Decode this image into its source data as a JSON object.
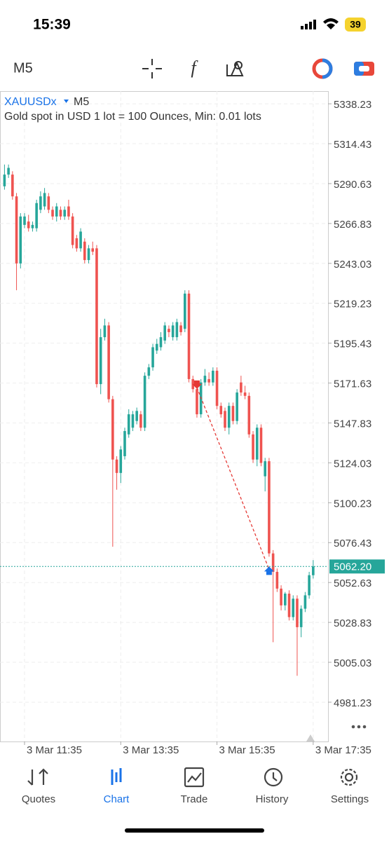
{
  "status_bar": {
    "time": "15:39",
    "battery": "39"
  },
  "toolbar": {
    "timeframe": "M5"
  },
  "chart_data": {
    "type": "candlestick",
    "symbol": "XAUUSDx",
    "timeframe": "M5",
    "description": "Gold spot in USD 1 lot = 100 Ounces, Min: 0.01 lots",
    "categories": [
      null,
      null,
      null,
      null,
      null,
      "3 Mar 11:35",
      null,
      null,
      null,
      null,
      null,
      null,
      null,
      null,
      null,
      null,
      null,
      null,
      null,
      null,
      null,
      null,
      null,
      null,
      null,
      null,
      null,
      null,
      null,
      "3 Mar 13:35",
      null,
      null,
      null,
      null,
      null,
      null,
      null,
      null,
      null,
      null,
      null,
      null,
      null,
      null,
      null,
      null,
      null,
      null,
      null,
      null,
      null,
      null,
      null,
      "3 Mar 15:35",
      null,
      null,
      null,
      null,
      null,
      null,
      null,
      null,
      null,
      null,
      null,
      null,
      null,
      null,
      null,
      null,
      null,
      null,
      null,
      null,
      null,
      null,
      null,
      "3 Mar 17:35"
    ],
    "open": [
      5289,
      5296,
      5296,
      5283,
      5243,
      5266,
      5268,
      5264,
      5264,
      5275,
      5277,
      5283,
      5275,
      5271,
      5275,
      5271,
      5277,
      5271,
      5258,
      5252,
      5256,
      5245,
      5252,
      5252,
      5171,
      5199,
      5206,
      5162,
      5126,
      5118,
      5128,
      5141,
      5145,
      5149,
      5153,
      5145,
      5176,
      5181,
      5191,
      5193,
      5197,
      5204,
      5199,
      5199,
      5206,
      5204,
      5225,
      5174,
      5168,
      5153,
      5172,
      5174,
      5172,
      5179,
      5158,
      5155,
      5145,
      5158,
      5149,
      5172,
      5166,
      5164,
      5141,
      5126,
      5145,
      5116,
      5125,
      5070,
      5059,
      5049,
      5039,
      5046,
      5032,
      5043,
      5026,
      5037,
      5045,
      5057
    ],
    "high": [
      5302,
      5302,
      5298,
      5285,
      5273,
      5273,
      5272,
      5268,
      5281,
      5286,
      5288,
      5285,
      5277,
      5279,
      5277,
      5277,
      5281,
      5273,
      5260,
      5264,
      5258,
      5254,
      5256,
      5254,
      5204,
      5210,
      5208,
      5164,
      5128,
      5134,
      5145,
      5156,
      5155,
      5157,
      5155,
      5178,
      5183,
      5195,
      5198,
      5202,
      5208,
      5206,
      5208,
      5210,
      5208,
      5227,
      5227,
      5176,
      5172,
      5174,
      5180,
      5178,
      5181,
      5181,
      5160,
      5157,
      5160,
      5160,
      5168,
      5176,
      5170,
      5166,
      5143,
      5147,
      5147,
      5127,
      5127,
      5072,
      5061,
      5051,
      5047,
      5048,
      5045,
      5045,
      5039,
      5047,
      5059,
      5066
    ],
    "low": [
      5287,
      5294,
      5281,
      5227,
      5240,
      5264,
      5262,
      5262,
      5262,
      5273,
      5275,
      5273,
      5269,
      5268,
      5269,
      5269,
      5269,
      5252,
      5250,
      5250,
      5243,
      5243,
      5248,
      5169,
      5165,
      5197,
      5160,
      5074,
      5108,
      5112,
      5126,
      5139,
      5143,
      5147,
      5143,
      5143,
      5174,
      5179,
      5189,
      5191,
      5195,
      5199,
      5197,
      5197,
      5200,
      5202,
      5172,
      5166,
      5151,
      5151,
      5170,
      5170,
      5170,
      5156,
      5151,
      5143,
      5141,
      5147,
      5147,
      5164,
      5162,
      5139,
      5124,
      5122,
      5122,
      5107,
      5068,
      5017,
      5047,
      5036,
      5036,
      5030,
      5030,
      4997,
      5020,
      5035,
      5043,
      5055
    ],
    "close": [
      5296,
      5300,
      5283,
      5243,
      5271,
      5271,
      5264,
      5266,
      5279,
      5283,
      5285,
      5275,
      5271,
      5277,
      5271,
      5275,
      5271,
      5254,
      5252,
      5262,
      5245,
      5252,
      5250,
      5171,
      5199,
      5206,
      5162,
      5126,
      5118,
      5132,
      5143,
      5153,
      5153,
      5155,
      5145,
      5176,
      5181,
      5193,
      5195,
      5199,
      5206,
      5202,
      5206,
      5208,
      5202,
      5225,
      5174,
      5168,
      5153,
      5172,
      5176,
      5172,
      5179,
      5158,
      5153,
      5145,
      5158,
      5149,
      5166,
      5166,
      5164,
      5141,
      5126,
      5145,
      5124,
      5125,
      5070,
      5059,
      5049,
      5039,
      5046,
      5032,
      5043,
      5026,
      5037,
      5045,
      5057,
      5062.2
    ],
    "up_color": "#26a69a",
    "down_color": "#ef5350",
    "ylim": [
      4957.8,
      5345.8
    ],
    "yticks": [
      5338.23,
      5314.43,
      5290.63,
      5266.83,
      5243.03,
      5219.23,
      5195.43,
      5171.63,
      5147.83,
      5124.03,
      5100.23,
      5076.43,
      5052.63,
      5028.83,
      5005.03,
      4981.23
    ],
    "grid": true,
    "current_price": {
      "value": 5062.2,
      "label": "5062.20"
    },
    "trades": {
      "sell_price": 5169,
      "buy_price": 5060.5
    }
  },
  "nav": [
    "Quotes",
    "Chart",
    "Trade",
    "History",
    "Settings"
  ],
  "nav_active": 1
}
